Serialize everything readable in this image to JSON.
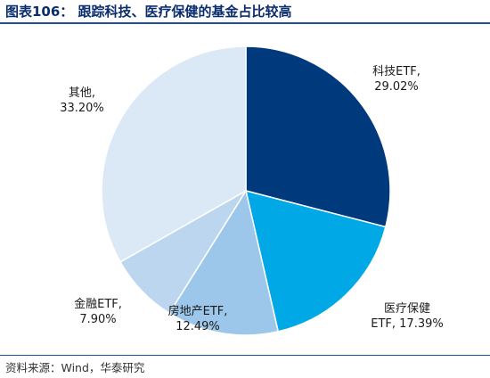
{
  "header": {
    "title": "图表106：  跟踪科技、医疗保健的基金占比较高"
  },
  "footer": {
    "source": "资料来源：Wind，华泰研究"
  },
  "chart_data": {
    "type": "pie",
    "slices": [
      {
        "name": "科技ETF",
        "value": 29.02,
        "value_label": "29.02%",
        "label_lines": [
          "科技ETF,",
          "29.02%"
        ],
        "color": "#003a7d"
      },
      {
        "name": "医疗保健ETF",
        "value": 17.39,
        "value_label": "17.39%",
        "label_lines": [
          "医疗保健",
          "ETF, 17.39%"
        ],
        "color": "#00a8e6"
      },
      {
        "name": "房地产ETF",
        "value": 12.49,
        "value_label": "12.49%",
        "label_lines": [
          "房地产ETF,",
          "12.49%"
        ],
        "color": "#9cc6ea"
      },
      {
        "name": "金融ETF",
        "value": 7.9,
        "value_label": "7.90%",
        "label_lines": [
          "金融ETF,",
          "7.90%"
        ],
        "color": "#bcd6ef"
      },
      {
        "name": "其他",
        "value": 33.2,
        "value_label": "33.20%",
        "label_lines": [
          "其他,",
          "33.20%"
        ],
        "color": "#dbe8f6"
      }
    ],
    "start_angle": "12 o'clock",
    "direction": "clockwise",
    "legend": "none"
  }
}
